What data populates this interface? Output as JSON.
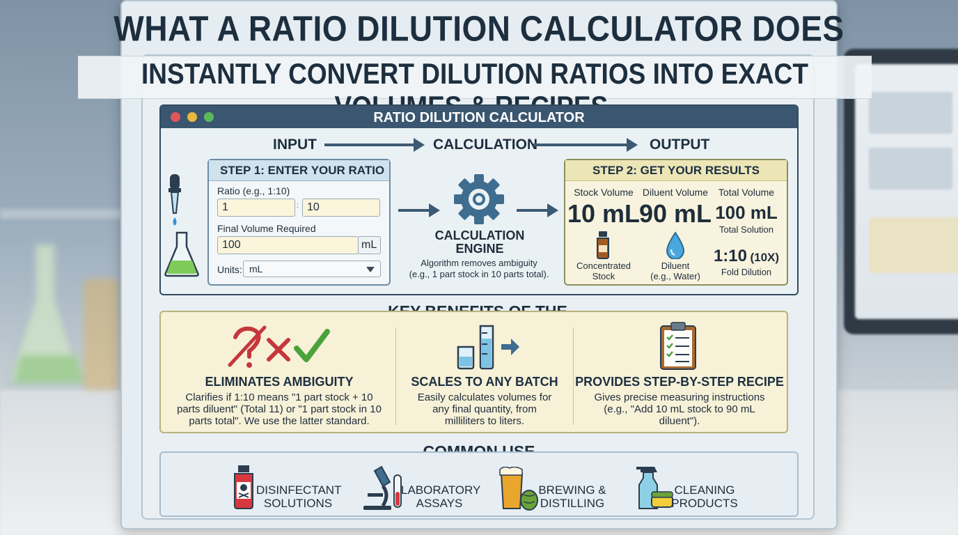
{
  "title": "WHAT A RATIO DILUTION CALCULATOR DOES",
  "subtitle": "INSTANTLY CONVERT DILUTION RATIOS INTO EXACT VOLUMES & RECIPES.",
  "calculator": {
    "window_title": "RATIO DILUTION CALCULATOR",
    "flow": {
      "input": "INPUT",
      "calculation": "CALCULATION",
      "output": "OUTPUT"
    },
    "step1": {
      "heading": "STEP 1: ENTER YOUR RATIO",
      "ratio_label": "Ratio (e.g., 1:10)",
      "ratio_left": "1",
      "ratio_separator": ":",
      "ratio_right": "10",
      "volume_label": "Final Volume Required",
      "volume_value": "100",
      "volume_unit": "mL",
      "units_label": "Units:",
      "units_value": "mL"
    },
    "engine": {
      "title_line1": "CALCULATION",
      "title_line2": "ENGINE",
      "desc_line1": "Algorithm removes ambiguity",
      "desc_line2": "(e.g., 1 part stock in 10 parts total)."
    },
    "step2": {
      "heading": "STEP 2: GET YOUR RESULTS",
      "stock": {
        "label": "Stock Volume",
        "value": "10 mL",
        "caption_line1": "Concentrated",
        "caption_line2": "Stock"
      },
      "diluent": {
        "label": "Diluent Volume",
        "value": "90 mL",
        "caption_line1": "Diluent",
        "caption_line2": "(e.g., Water)"
      },
      "total": {
        "label": "Total Volume",
        "value": "100 mL",
        "caption": "Total Solution",
        "ratio": "1:10",
        "fold": "(10X)",
        "fold_caption": "Fold Dilution"
      }
    }
  },
  "benefits": {
    "heading": "KEY BENEFITS OF THE CALCULATOR",
    "items": [
      {
        "title": "ELIMINATES AMBIGUITY",
        "lines": [
          "Clarifies if 1:10 means \"1 part stock + 10",
          "parts diluent\" (Total 11) or \"1 part stock in 10",
          "parts total\". We use the latter standard."
        ]
      },
      {
        "title": "SCALES TO ANY BATCH",
        "lines": [
          "Easily calculates volumes for",
          "any final quantity, from",
          "milliliters to liters."
        ]
      },
      {
        "title": "PROVIDES STEP-BY-STEP RECIPE",
        "lines": [
          "Gives precise measuring instructions",
          "(e.g., \"Add 10 mL stock to 90 mL",
          "diluent\")."
        ]
      }
    ]
  },
  "use_cases": {
    "heading": "COMMON USE CASES",
    "items": [
      {
        "line1": "DISINFECTANT",
        "line2": "SOLUTIONS",
        "icon": "poison-bottle-icon"
      },
      {
        "line1": "LABORATORY",
        "line2": "ASSAYS",
        "icon": "microscope-icon"
      },
      {
        "line1": "BREWING &",
        "line2": "DISTILLING",
        "icon": "beer-hops-icon"
      },
      {
        "line1": "CLEANING",
        "line2": "PRODUCTS",
        "icon": "spray-bottle-icon"
      }
    ]
  },
  "colors": {
    "navy": "#3a5670",
    "accent_red": "#c6363c",
    "accent_green": "#4aa33a",
    "cream": "#f7f1d8"
  }
}
